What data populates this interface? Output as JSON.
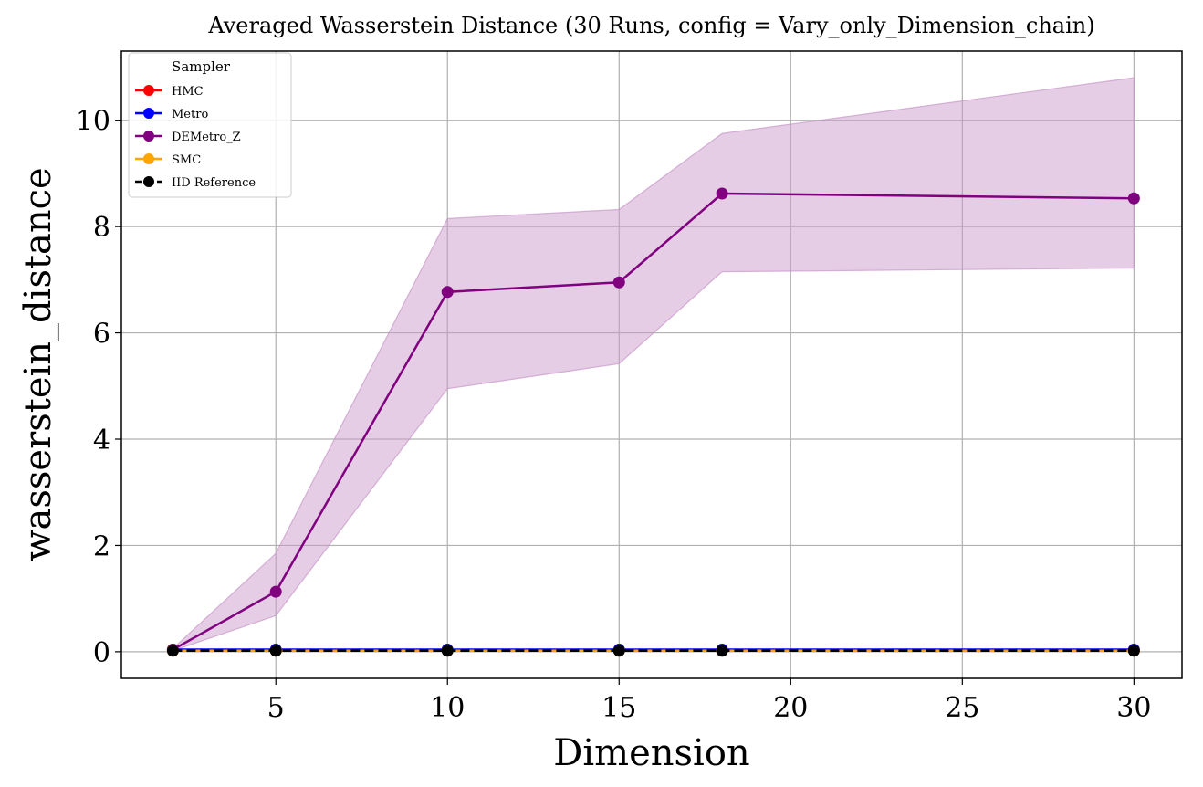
{
  "chart_data": {
    "type": "line",
    "title": "Averaged Wasserstein Distance (30 Runs, config = Vary_only_Dimension_chain)",
    "xlabel": "Dimension",
    "ylabel": "wasserstein_distance",
    "xlim": [
      0.5,
      31.4
    ],
    "ylim": [
      -0.5,
      11.3
    ],
    "xticks": [
      5,
      10,
      15,
      20,
      25,
      30
    ],
    "yticks": [
      0,
      2,
      4,
      6,
      8,
      10
    ],
    "grid": true,
    "x": [
      2,
      5,
      10,
      15,
      18,
      30
    ],
    "legend": {
      "title": "Sampler",
      "position": "upper-left"
    },
    "band": {
      "series": "DEMetro_Z",
      "color": "#c896c8",
      "lower": [
        0.02,
        0.68,
        4.95,
        5.42,
        7.15,
        7.22
      ],
      "upper": [
        0.06,
        1.85,
        8.15,
        8.32,
        9.75,
        10.8
      ]
    },
    "series": [
      {
        "name": "HMC",
        "color": "#ff0000",
        "dashed": false,
        "values": [
          0.03,
          0.03,
          0.03,
          0.03,
          0.03,
          0.03
        ]
      },
      {
        "name": "Metro",
        "color": "#0000ff",
        "dashed": false,
        "values": [
          0.04,
          0.04,
          0.04,
          0.04,
          0.04,
          0.04
        ]
      },
      {
        "name": "DEMetro_Z",
        "color": "#800080",
        "dashed": false,
        "values": [
          0.04,
          1.13,
          6.77,
          6.95,
          8.62,
          8.53
        ]
      },
      {
        "name": "SMC",
        "color": "#ffa500",
        "dashed": false,
        "values": [
          0.02,
          0.02,
          0.02,
          0.02,
          0.02,
          0.02
        ]
      },
      {
        "name": "IID Reference",
        "color": "#000000",
        "dashed": true,
        "values": [
          0.02,
          0.02,
          0.02,
          0.02,
          0.02,
          0.02
        ]
      }
    ]
  }
}
